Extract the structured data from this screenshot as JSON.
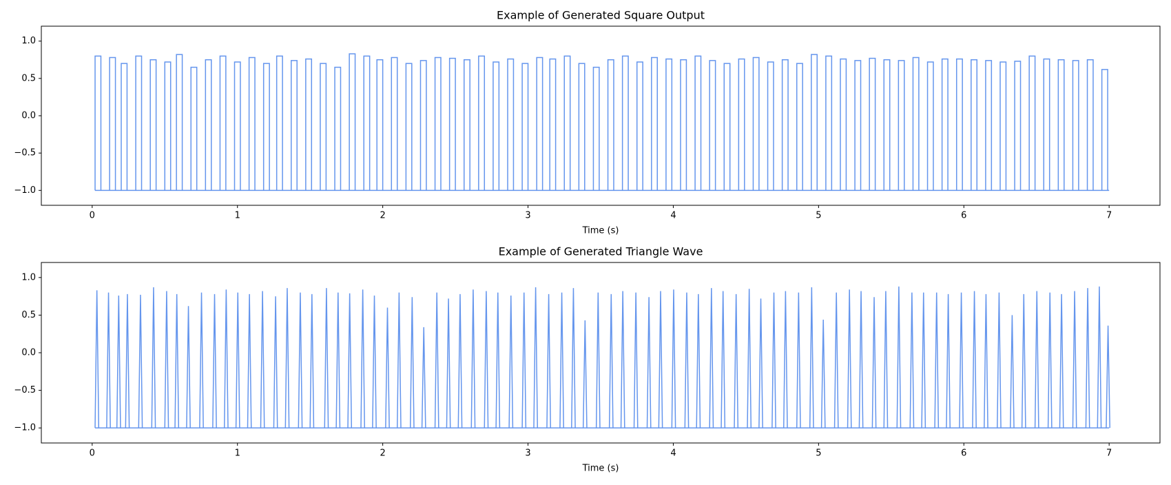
{
  "chart_data": [
    {
      "type": "pulse",
      "shape": "square",
      "title": "Example of Generated Square Output",
      "x_label": "Time (s)",
      "color": "#6495ed",
      "xlim": [
        -0.35,
        7.35
      ],
      "ylim": [
        -1.2,
        1.2
      ],
      "xticks": [
        0,
        1,
        2,
        3,
        4,
        5,
        6,
        7
      ],
      "yticks": [
        {
          "value": -1,
          "label": "−1.0"
        },
        {
          "value": -0.5,
          "label": "−0.5"
        },
        {
          "value": 0,
          "label": "0.0"
        },
        {
          "value": 0.5,
          "label": "0.5"
        },
        {
          "value": 1,
          "label": "1.0"
        }
      ],
      "baseline": -1,
      "width": 0.04,
      "x": [
        0.02,
        0.12,
        0.2,
        0.3,
        0.4,
        0.5,
        0.58,
        0.68,
        0.78,
        0.88,
        0.98,
        1.08,
        1.18,
        1.27,
        1.37,
        1.47,
        1.57,
        1.67,
        1.77,
        1.87,
        1.96,
        2.06,
        2.16,
        2.26,
        2.36,
        2.46,
        2.56,
        2.66,
        2.76,
        2.86,
        2.96,
        3.06,
        3.15,
        3.25,
        3.35,
        3.45,
        3.55,
        3.65,
        3.75,
        3.85,
        3.95,
        4.05,
        4.15,
        4.25,
        4.35,
        4.45,
        4.55,
        4.65,
        4.75,
        4.85,
        4.95,
        5.05,
        5.15,
        5.25,
        5.35,
        5.45,
        5.55,
        5.65,
        5.75,
        5.85,
        5.95,
        6.05,
        6.15,
        6.25,
        6.35,
        6.45,
        6.55,
        6.65,
        6.75,
        6.85,
        6.95
      ],
      "values": [
        0.8,
        0.78,
        0.7,
        0.8,
        0.75,
        0.72,
        0.82,
        0.65,
        0.75,
        0.8,
        0.72,
        0.78,
        0.7,
        0.8,
        0.74,
        0.76,
        0.7,
        0.65,
        0.83,
        0.8,
        0.75,
        0.78,
        0.7,
        0.74,
        0.78,
        0.77,
        0.75,
        0.8,
        0.72,
        0.76,
        0.7,
        0.78,
        0.76,
        0.8,
        0.7,
        0.65,
        0.75,
        0.8,
        0.72,
        0.78,
        0.76,
        0.75,
        0.8,
        0.74,
        0.7,
        0.76,
        0.78,
        0.72,
        0.75,
        0.7,
        0.82,
        0.8,
        0.76,
        0.74,
        0.77,
        0.75,
        0.74,
        0.78,
        0.72,
        0.76,
        0.76,
        0.75,
        0.74,
        0.72,
        0.73,
        0.8,
        0.76,
        0.75,
        0.74,
        0.75,
        0.62
      ]
    },
    {
      "type": "pulse",
      "shape": "triangle",
      "title": "Example of Generated Triangle Wave",
      "x_label": "Time (s)",
      "color": "#6495ed",
      "xlim": [
        -0.35,
        7.35
      ],
      "ylim": [
        -1.2,
        1.2
      ],
      "xticks": [
        0,
        1,
        2,
        3,
        4,
        5,
        6,
        7
      ],
      "yticks": [
        {
          "value": -1,
          "label": "−1.0"
        },
        {
          "value": -0.5,
          "label": "−0.5"
        },
        {
          "value": 0,
          "label": "0.0"
        },
        {
          "value": 0.5,
          "label": "0.5"
        },
        {
          "value": 1,
          "label": "1.0"
        }
      ],
      "baseline": -1,
      "width": 0.025,
      "x": [
        0.02,
        0.1,
        0.17,
        0.23,
        0.32,
        0.41,
        0.5,
        0.57,
        0.65,
        0.74,
        0.83,
        0.91,
        0.99,
        1.07,
        1.16,
        1.25,
        1.33,
        1.42,
        1.5,
        1.6,
        1.68,
        1.76,
        1.85,
        1.93,
        2.02,
        2.1,
        2.19,
        2.27,
        2.36,
        2.44,
        2.52,
        2.61,
        2.7,
        2.78,
        2.87,
        2.96,
        3.04,
        3.13,
        3.22,
        3.3,
        3.38,
        3.47,
        3.56,
        3.64,
        3.73,
        3.82,
        3.9,
        3.99,
        4.08,
        4.16,
        4.25,
        4.33,
        4.42,
        4.51,
        4.59,
        4.68,
        4.76,
        4.85,
        4.94,
        5.02,
        5.11,
        5.2,
        5.28,
        5.37,
        5.45,
        5.54,
        5.63,
        5.71,
        5.8,
        5.88,
        5.97,
        6.06,
        6.14,
        6.23,
        6.32,
        6.4,
        6.49,
        6.58,
        6.66,
        6.75,
        6.84,
        6.92,
        6.98
      ],
      "values": [
        0.83,
        0.8,
        0.76,
        0.78,
        0.77,
        0.87,
        0.82,
        0.78,
        0.62,
        0.8,
        0.78,
        0.84,
        0.8,
        0.78,
        0.82,
        0.75,
        0.86,
        0.8,
        0.78,
        0.86,
        0.8,
        0.79,
        0.84,
        0.76,
        0.6,
        0.8,
        0.74,
        0.34,
        0.8,
        0.72,
        0.78,
        0.84,
        0.82,
        0.8,
        0.76,
        0.8,
        0.87,
        0.78,
        0.8,
        0.86,
        0.43,
        0.8,
        0.78,
        0.82,
        0.8,
        0.74,
        0.82,
        0.84,
        0.8,
        0.78,
        0.86,
        0.82,
        0.78,
        0.85,
        0.72,
        0.8,
        0.82,
        0.8,
        0.87,
        0.44,
        0.8,
        0.84,
        0.82,
        0.74,
        0.82,
        0.88,
        0.8,
        0.8,
        0.8,
        0.78,
        0.8,
        0.82,
        0.78,
        0.8,
        0.5,
        0.78,
        0.82,
        0.8,
        0.78,
        0.82,
        0.86,
        0.88,
        0.36
      ]
    }
  ]
}
